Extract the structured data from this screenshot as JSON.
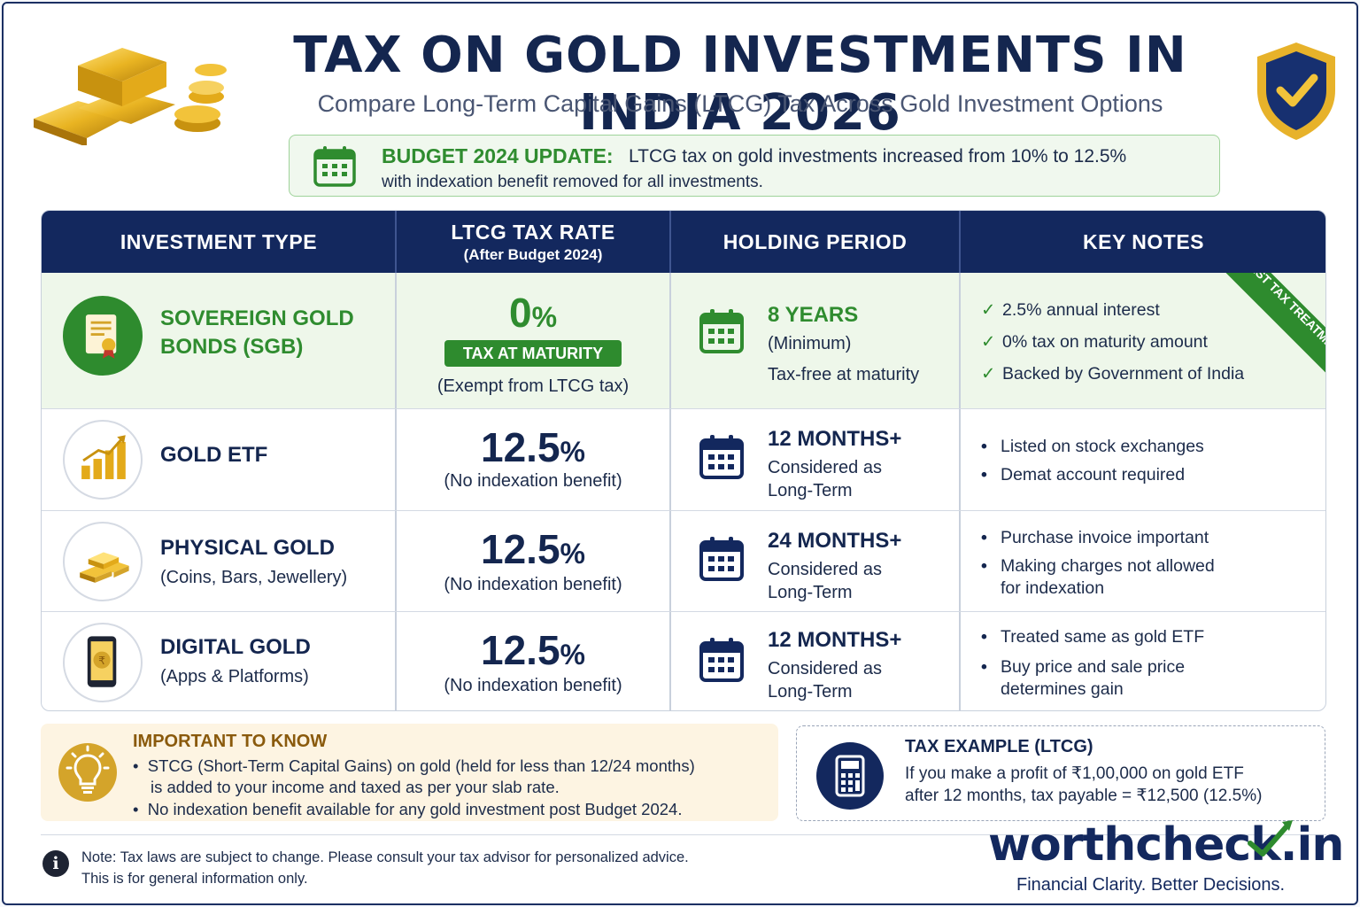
{
  "header": {
    "title": "TAX ON GOLD INVESTMENTS IN INDIA 2026",
    "subtitle": "Compare Long-Term Capital Gains (LTCG) Tax Across Gold Investment Options"
  },
  "update": {
    "label": "BUDGET 2024 UPDATE:",
    "text_line1": "LTCG tax on gold investments increased from 10% to 12.5%",
    "text_line2": "with indexation benefit removed for all investments."
  },
  "table": {
    "headers": {
      "type": "INVESTMENT TYPE",
      "rate": "LTCG TAX RATE",
      "rate_sub": "(After Budget 2024)",
      "holding": "HOLDING PERIOD",
      "notes": "KEY NOTES"
    },
    "rows": [
      {
        "name_line1": "SOVEREIGN GOLD",
        "name_line2": "BONDS (SGB)",
        "rate": "0",
        "pct": "%",
        "pill": "TAX AT MATURITY",
        "rate_note": "(Exempt from LTCG tax)",
        "hold_main": "8 YEARS",
        "hold_sub1": "(Minimum)",
        "hold_sub2": "Tax-free at maturity",
        "notes": [
          "2.5% annual interest",
          "0% tax on maturity amount",
          "Backed by Government of India"
        ],
        "ribbon": "BEST TAX TREATMENT"
      },
      {
        "name_line1": "GOLD ETF",
        "rate": "12.5",
        "pct": "%",
        "rate_note": "(No indexation benefit)",
        "hold_main": "12 MONTHS+",
        "hold_sub1": "Considered as",
        "hold_sub2": "Long-Term",
        "notes": [
          "Listed on stock exchanges",
          "Demat account required"
        ]
      },
      {
        "name_line1": "PHYSICAL GOLD",
        "name_sub": "(Coins, Bars, Jewellery)",
        "rate": "12.5",
        "pct": "%",
        "rate_note": "(No indexation benefit)",
        "hold_main": "24 MONTHS+",
        "hold_sub1": "Considered as",
        "hold_sub2": "Long-Term",
        "notes": [
          "Purchase invoice important",
          "Making charges not allowed",
          "for indexation"
        ]
      },
      {
        "name_line1": "DIGITAL GOLD",
        "name_sub": "(Apps & Platforms)",
        "rate": "12.5",
        "pct": "%",
        "rate_note": "(No indexation benefit)",
        "hold_main": "12 MONTHS+",
        "hold_sub1": "Considered as",
        "hold_sub2": "Long-Term",
        "notes": [
          "Treated same as gold ETF",
          "Buy price and sale price",
          "determines gain"
        ]
      }
    ]
  },
  "important": {
    "title": "IMPORTANT TO KNOW",
    "line1": "STCG (Short-Term Capital Gains) on gold (held for less than 12/24 months)",
    "line2": "is added to your income and taxed as per your slab rate.",
    "line3": "No indexation benefit available for any gold investment post Budget 2024."
  },
  "example": {
    "title": "TAX EXAMPLE (LTCG)",
    "line1": "If you make a profit of ₹1,00,000 on gold ETF",
    "line2": "after 12 months, tax payable = ₹12,500 (12.5%)"
  },
  "footer": {
    "info_glyph": "i",
    "disclaimer1": "Note: Tax laws are subject to change. Please consult your tax advisor for personalized advice.",
    "disclaimer2": "This is for general information only.",
    "brand": "worthcheck.in",
    "tagline": "Financial Clarity. Better Decisions."
  },
  "colors": {
    "navy": "#13285e",
    "green": "#2e8b2e",
    "gold": "#d4a42a"
  },
  "icons": [
    "gold-bars-icon",
    "shield-check-icon",
    "calendar-icon",
    "certificate-icon",
    "bar-chart-icon",
    "gold-bar-stack-icon",
    "phone-coin-icon",
    "lightbulb-icon",
    "calculator-icon",
    "info-icon",
    "checkmark-arrow-icon"
  ]
}
